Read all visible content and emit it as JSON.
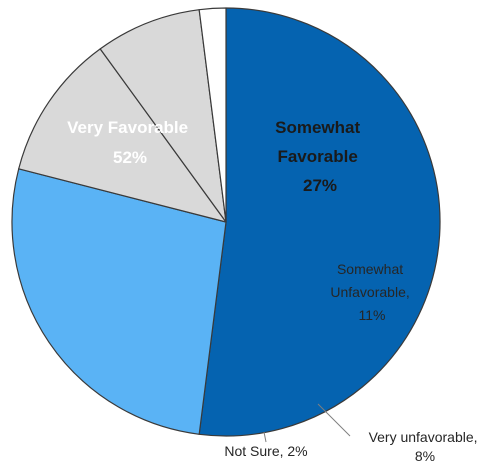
{
  "chart_data": {
    "type": "pie",
    "title": "",
    "slices": [
      {
        "name": "Very Favorable",
        "label_lines": [
          "Very Favorable",
          "52%"
        ],
        "value": 52,
        "color": "#0563b0"
      },
      {
        "name": "Somewhat Favorable",
        "label_lines": [
          "Somewhat",
          "Favorable",
          "27%"
        ],
        "value": 27,
        "color": "#5ab3f5"
      },
      {
        "name": "Somewhat Unfavorable",
        "label_lines": [
          "Somewhat",
          "Unfavorable,",
          "11%"
        ],
        "value": 11,
        "color": "#d9d9d9"
      },
      {
        "name": "Very unfavorable",
        "label_lines": [
          "Very unfavorable,",
          "8%"
        ],
        "value": 8,
        "color": "#d9d9d9"
      },
      {
        "name": "Not Sure",
        "label_lines": [
          "Not Sure, 2%"
        ],
        "value": 2,
        "color": "#ffffff"
      }
    ],
    "legend": "none",
    "start": "12 o'clock",
    "direction": "clockwise"
  }
}
